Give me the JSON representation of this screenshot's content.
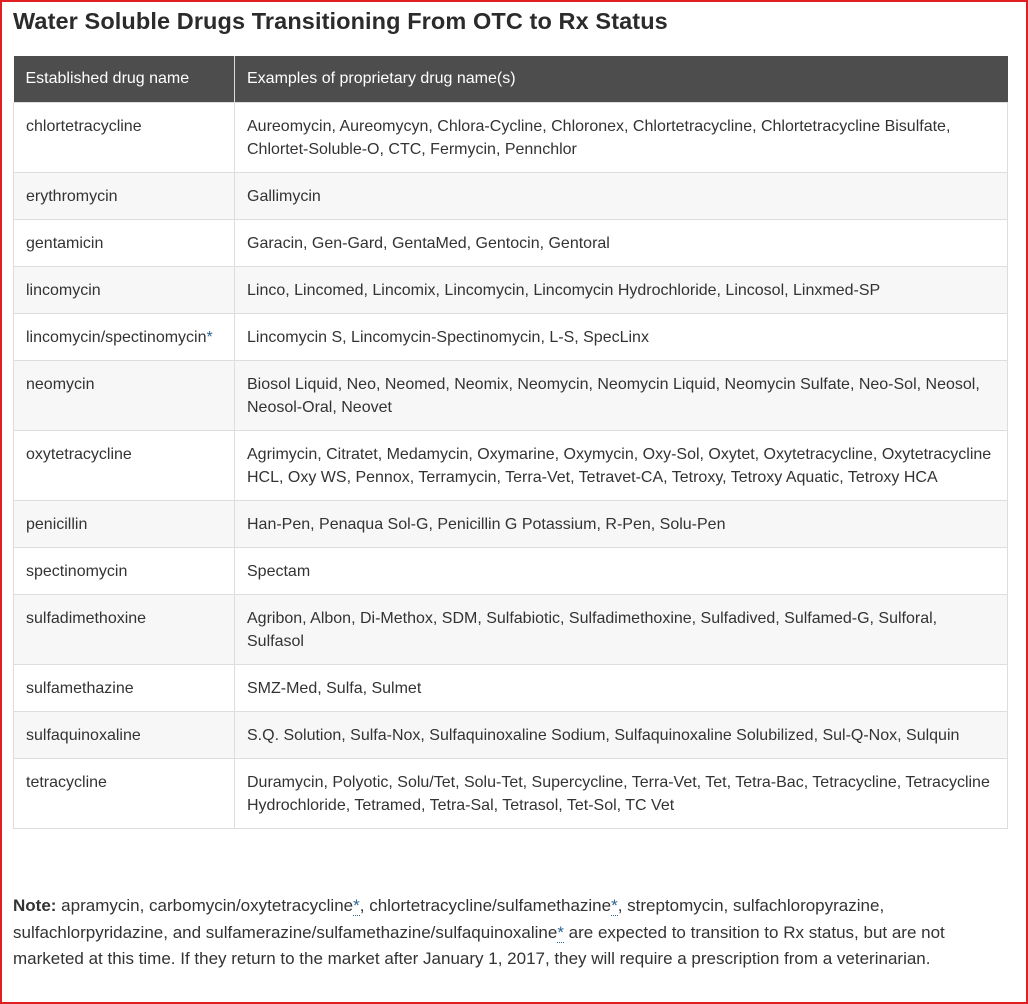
{
  "title": "Water Soluble Drugs Transitioning From OTC to Rx Status",
  "table": {
    "headers": [
      "Established drug name",
      "Examples of proprietary drug name(s)"
    ],
    "rows": [
      {
        "name": "chlortetracycline",
        "asterisk": "",
        "examples": "Aureomycin, Aureomycyn, Chlora-Cycline, Chloronex, Chlortetracycline, Chlortetracycline Bisulfate, Chlortet-Soluble-O, CTC, Fermycin, Pennchlor"
      },
      {
        "name": "erythromycin",
        "asterisk": "",
        "examples": "Gallimycin"
      },
      {
        "name": "gentamicin",
        "asterisk": "",
        "examples": "Garacin, Gen-Gard, GentaMed, Gentocin, Gentoral"
      },
      {
        "name": "lincomycin",
        "asterisk": "",
        "examples": "Linco, Lincomed, Lincomix, Lincomycin, Lincomycin Hydrochloride, Lincosol, Linxmed-SP"
      },
      {
        "name": "lincomycin/spectinomycin",
        "asterisk": "*",
        "examples": "Lincomycin S, Lincomycin-Spectinomycin, L-S, SpecLinx"
      },
      {
        "name": "neomycin",
        "asterisk": "",
        "examples": "Biosol Liquid, Neo, Neomed, Neomix, Neomycin, Neomycin Liquid, Neomycin Sulfate, Neo-Sol, Neosol, Neosol-Oral, Neovet"
      },
      {
        "name": "oxytetracycline",
        "asterisk": "",
        "examples": "Agrimycin, Citratet, Medamycin, Oxymarine, Oxymycin, Oxy-Sol, Oxytet, Oxytetracycline, Oxytetracycline HCL, Oxy WS, Pennox, Terramycin, Terra-Vet, Tetravet-CA, Tetroxy, Tetroxy Aquatic, Tetroxy HCA"
      },
      {
        "name": "penicillin",
        "asterisk": "",
        "examples": "Han-Pen, Penaqua Sol-G, Penicillin G Potassium, R-Pen, Solu-Pen"
      },
      {
        "name": "spectinomycin",
        "asterisk": "",
        "examples": "Spectam"
      },
      {
        "name": "sulfadimethoxine",
        "asterisk": "",
        "examples": "Agribon, Albon, Di-Methox, SDM, Sulfabiotic, Sulfadimethoxine, Sulfadived, Sulfamed-G, Sulforal, Sulfasol"
      },
      {
        "name": "sulfamethazine",
        "asterisk": "",
        "examples": "SMZ-Med, Sulfa, Sulmet"
      },
      {
        "name": "sulfaquinoxaline",
        "asterisk": "",
        "examples": "S.Q. Solution, Sulfa-Nox, Sulfaquinoxaline Sodium, Sulfaquinoxaline Solubilized, Sul-Q-Nox, Sulquin"
      },
      {
        "name": "tetracycline",
        "asterisk": "",
        "examples": "Duramycin, Polyotic, Solu/Tet, Solu-Tet, Supercycline, Terra-Vet, Tet, Tetra-Bac, Tetracycline, Tetracycline Hydrochloride, Tetramed, Tetra-Sal, Tetrasol, Tet-Sol, TC Vet"
      }
    ]
  },
  "note": {
    "label": "Note:",
    "seg1": " apramycin, carbomycin/oxytetracycline",
    "ast1": "*",
    "seg2": ", chlortetracycline/sulfamethazine",
    "ast2": "*",
    "seg3": ", streptomycin, sulfachloropyrazine, sulfachlorpyridazine, and sulfamerazine/sulfamethazine/sulfaquinoxaline",
    "ast3": "*",
    "seg4": " are expected to transition to Rx status, but are not marketed at this time. If they return to the market after January 1, 2017, they will require a prescription from a veterinarian."
  },
  "colors": {
    "header_bg": "#4d4d4d",
    "link": "#2a6496",
    "frame": "#e02020"
  }
}
